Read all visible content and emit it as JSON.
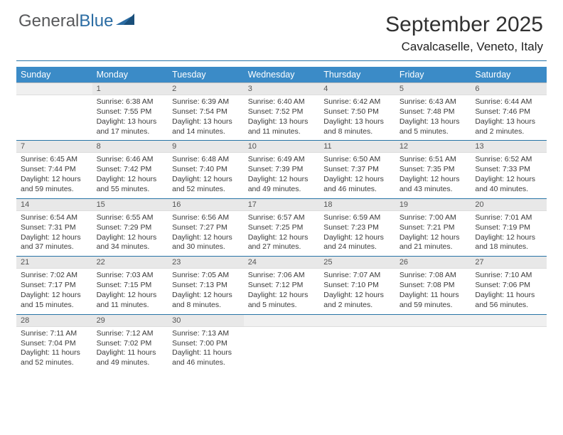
{
  "logo": {
    "first": "General",
    "second": "Blue"
  },
  "title": "September 2025",
  "location": "Cavalcaselle, Veneto, Italy",
  "day_headers": [
    "Sunday",
    "Monday",
    "Tuesday",
    "Wednesday",
    "Thursday",
    "Friday",
    "Saturday"
  ],
  "colors": {
    "header_bg": "#3b8bc7",
    "header_text": "#ffffff",
    "daynum_bg": "#e8e8e8",
    "week_border": "#2874a6",
    "logo_gray": "#58595b",
    "logo_blue": "#2b6ca3"
  },
  "weeks": [
    [
      {
        "num": "",
        "sunrise": "",
        "sunset": "",
        "daylight": ""
      },
      {
        "num": "1",
        "sunrise": "Sunrise: 6:38 AM",
        "sunset": "Sunset: 7:55 PM",
        "daylight": "Daylight: 13 hours and 17 minutes."
      },
      {
        "num": "2",
        "sunrise": "Sunrise: 6:39 AM",
        "sunset": "Sunset: 7:54 PM",
        "daylight": "Daylight: 13 hours and 14 minutes."
      },
      {
        "num": "3",
        "sunrise": "Sunrise: 6:40 AM",
        "sunset": "Sunset: 7:52 PM",
        "daylight": "Daylight: 13 hours and 11 minutes."
      },
      {
        "num": "4",
        "sunrise": "Sunrise: 6:42 AM",
        "sunset": "Sunset: 7:50 PM",
        "daylight": "Daylight: 13 hours and 8 minutes."
      },
      {
        "num": "5",
        "sunrise": "Sunrise: 6:43 AM",
        "sunset": "Sunset: 7:48 PM",
        "daylight": "Daylight: 13 hours and 5 minutes."
      },
      {
        "num": "6",
        "sunrise": "Sunrise: 6:44 AM",
        "sunset": "Sunset: 7:46 PM",
        "daylight": "Daylight: 13 hours and 2 minutes."
      }
    ],
    [
      {
        "num": "7",
        "sunrise": "Sunrise: 6:45 AM",
        "sunset": "Sunset: 7:44 PM",
        "daylight": "Daylight: 12 hours and 59 minutes."
      },
      {
        "num": "8",
        "sunrise": "Sunrise: 6:46 AM",
        "sunset": "Sunset: 7:42 PM",
        "daylight": "Daylight: 12 hours and 55 minutes."
      },
      {
        "num": "9",
        "sunrise": "Sunrise: 6:48 AM",
        "sunset": "Sunset: 7:40 PM",
        "daylight": "Daylight: 12 hours and 52 minutes."
      },
      {
        "num": "10",
        "sunrise": "Sunrise: 6:49 AM",
        "sunset": "Sunset: 7:39 PM",
        "daylight": "Daylight: 12 hours and 49 minutes."
      },
      {
        "num": "11",
        "sunrise": "Sunrise: 6:50 AM",
        "sunset": "Sunset: 7:37 PM",
        "daylight": "Daylight: 12 hours and 46 minutes."
      },
      {
        "num": "12",
        "sunrise": "Sunrise: 6:51 AM",
        "sunset": "Sunset: 7:35 PM",
        "daylight": "Daylight: 12 hours and 43 minutes."
      },
      {
        "num": "13",
        "sunrise": "Sunrise: 6:52 AM",
        "sunset": "Sunset: 7:33 PM",
        "daylight": "Daylight: 12 hours and 40 minutes."
      }
    ],
    [
      {
        "num": "14",
        "sunrise": "Sunrise: 6:54 AM",
        "sunset": "Sunset: 7:31 PM",
        "daylight": "Daylight: 12 hours and 37 minutes."
      },
      {
        "num": "15",
        "sunrise": "Sunrise: 6:55 AM",
        "sunset": "Sunset: 7:29 PM",
        "daylight": "Daylight: 12 hours and 34 minutes."
      },
      {
        "num": "16",
        "sunrise": "Sunrise: 6:56 AM",
        "sunset": "Sunset: 7:27 PM",
        "daylight": "Daylight: 12 hours and 30 minutes."
      },
      {
        "num": "17",
        "sunrise": "Sunrise: 6:57 AM",
        "sunset": "Sunset: 7:25 PM",
        "daylight": "Daylight: 12 hours and 27 minutes."
      },
      {
        "num": "18",
        "sunrise": "Sunrise: 6:59 AM",
        "sunset": "Sunset: 7:23 PM",
        "daylight": "Daylight: 12 hours and 24 minutes."
      },
      {
        "num": "19",
        "sunrise": "Sunrise: 7:00 AM",
        "sunset": "Sunset: 7:21 PM",
        "daylight": "Daylight: 12 hours and 21 minutes."
      },
      {
        "num": "20",
        "sunrise": "Sunrise: 7:01 AM",
        "sunset": "Sunset: 7:19 PM",
        "daylight": "Daylight: 12 hours and 18 minutes."
      }
    ],
    [
      {
        "num": "21",
        "sunrise": "Sunrise: 7:02 AM",
        "sunset": "Sunset: 7:17 PM",
        "daylight": "Daylight: 12 hours and 15 minutes."
      },
      {
        "num": "22",
        "sunrise": "Sunrise: 7:03 AM",
        "sunset": "Sunset: 7:15 PM",
        "daylight": "Daylight: 12 hours and 11 minutes."
      },
      {
        "num": "23",
        "sunrise": "Sunrise: 7:05 AM",
        "sunset": "Sunset: 7:13 PM",
        "daylight": "Daylight: 12 hours and 8 minutes."
      },
      {
        "num": "24",
        "sunrise": "Sunrise: 7:06 AM",
        "sunset": "Sunset: 7:12 PM",
        "daylight": "Daylight: 12 hours and 5 minutes."
      },
      {
        "num": "25",
        "sunrise": "Sunrise: 7:07 AM",
        "sunset": "Sunset: 7:10 PM",
        "daylight": "Daylight: 12 hours and 2 minutes."
      },
      {
        "num": "26",
        "sunrise": "Sunrise: 7:08 AM",
        "sunset": "Sunset: 7:08 PM",
        "daylight": "Daylight: 11 hours and 59 minutes."
      },
      {
        "num": "27",
        "sunrise": "Sunrise: 7:10 AM",
        "sunset": "Sunset: 7:06 PM",
        "daylight": "Daylight: 11 hours and 56 minutes."
      }
    ],
    [
      {
        "num": "28",
        "sunrise": "Sunrise: 7:11 AM",
        "sunset": "Sunset: 7:04 PM",
        "daylight": "Daylight: 11 hours and 52 minutes."
      },
      {
        "num": "29",
        "sunrise": "Sunrise: 7:12 AM",
        "sunset": "Sunset: 7:02 PM",
        "daylight": "Daylight: 11 hours and 49 minutes."
      },
      {
        "num": "30",
        "sunrise": "Sunrise: 7:13 AM",
        "sunset": "Sunset: 7:00 PM",
        "daylight": "Daylight: 11 hours and 46 minutes."
      },
      {
        "num": "",
        "sunrise": "",
        "sunset": "",
        "daylight": ""
      },
      {
        "num": "",
        "sunrise": "",
        "sunset": "",
        "daylight": ""
      },
      {
        "num": "",
        "sunrise": "",
        "sunset": "",
        "daylight": ""
      },
      {
        "num": "",
        "sunrise": "",
        "sunset": "",
        "daylight": ""
      }
    ]
  ]
}
